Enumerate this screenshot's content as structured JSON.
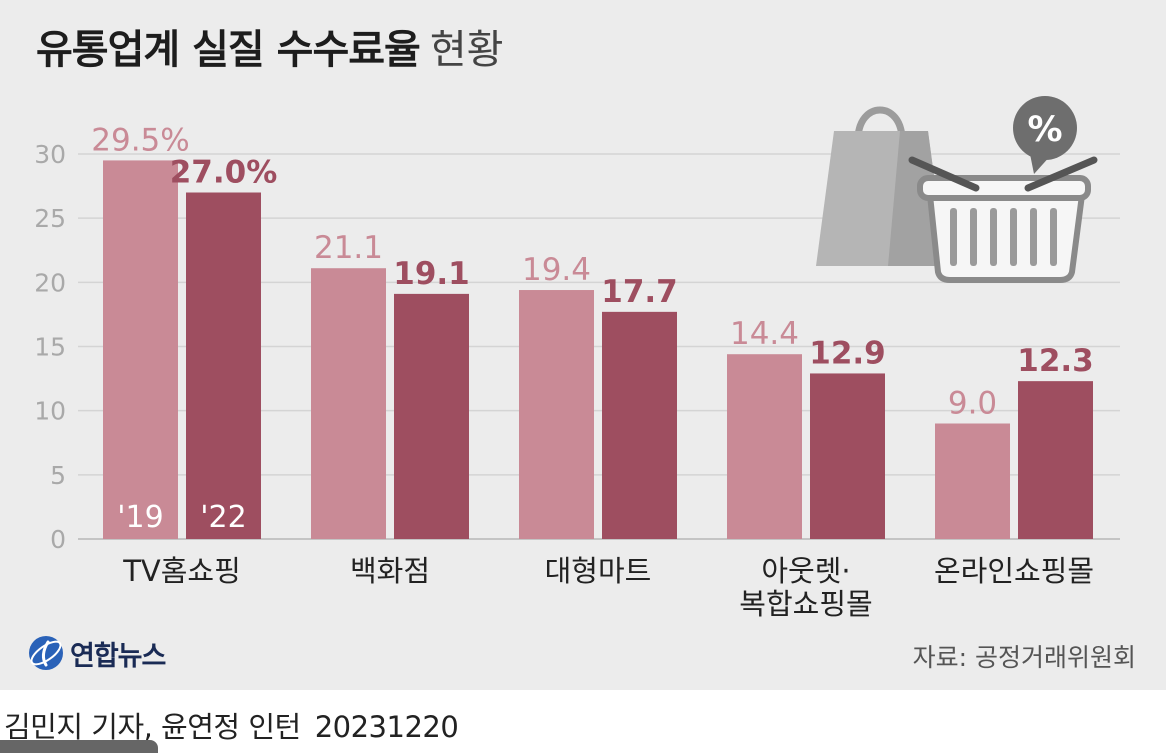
{
  "title": {
    "main": "유통업계 실질 수수료율",
    "sub": "현황"
  },
  "chart_data": {
    "type": "bar",
    "categories": [
      [
        "TV홈쇼핑"
      ],
      [
        "백화점"
      ],
      [
        "대형마트"
      ],
      [
        "아웃렛·",
        "복합쇼핑몰"
      ],
      [
        "온라인쇼핑몰"
      ]
    ],
    "series": [
      {
        "name": "'19",
        "values": [
          29.5,
          21.1,
          19.4,
          14.4,
          9.0
        ],
        "labels": [
          "29.5%",
          "21.1",
          "19.4",
          "14.4",
          "9.0"
        ],
        "color": "#c98a96"
      },
      {
        "name": "'22",
        "values": [
          27.0,
          19.1,
          17.7,
          12.9,
          12.3
        ],
        "labels": [
          "27.0%",
          "19.1",
          "17.7",
          "12.9",
          "12.3"
        ],
        "color": "#9e4e60"
      }
    ],
    "yticks": [
      0,
      5,
      10,
      15,
      20,
      25,
      30
    ],
    "ylim": [
      0,
      30
    ],
    "grid": true,
    "legend": "inside first bars"
  },
  "illustration": {
    "badge_text": "%",
    "icons": [
      "shopping-bag-icon",
      "shopping-basket-icon",
      "percent-badge-icon"
    ]
  },
  "logo": {
    "text": "연합뉴스",
    "icon": "yonhap-globe-icon"
  },
  "source": "자료: 공정거래위원회",
  "byline": {
    "credit": "김민지 기자, 윤연정 인턴",
    "date": "20231220"
  },
  "colors": {
    "background": "#ececec",
    "series_2019": "#c98a96",
    "series_2022": "#9e4e60",
    "grid": "#d4d4d4",
    "tick": "#a9a9a9"
  }
}
